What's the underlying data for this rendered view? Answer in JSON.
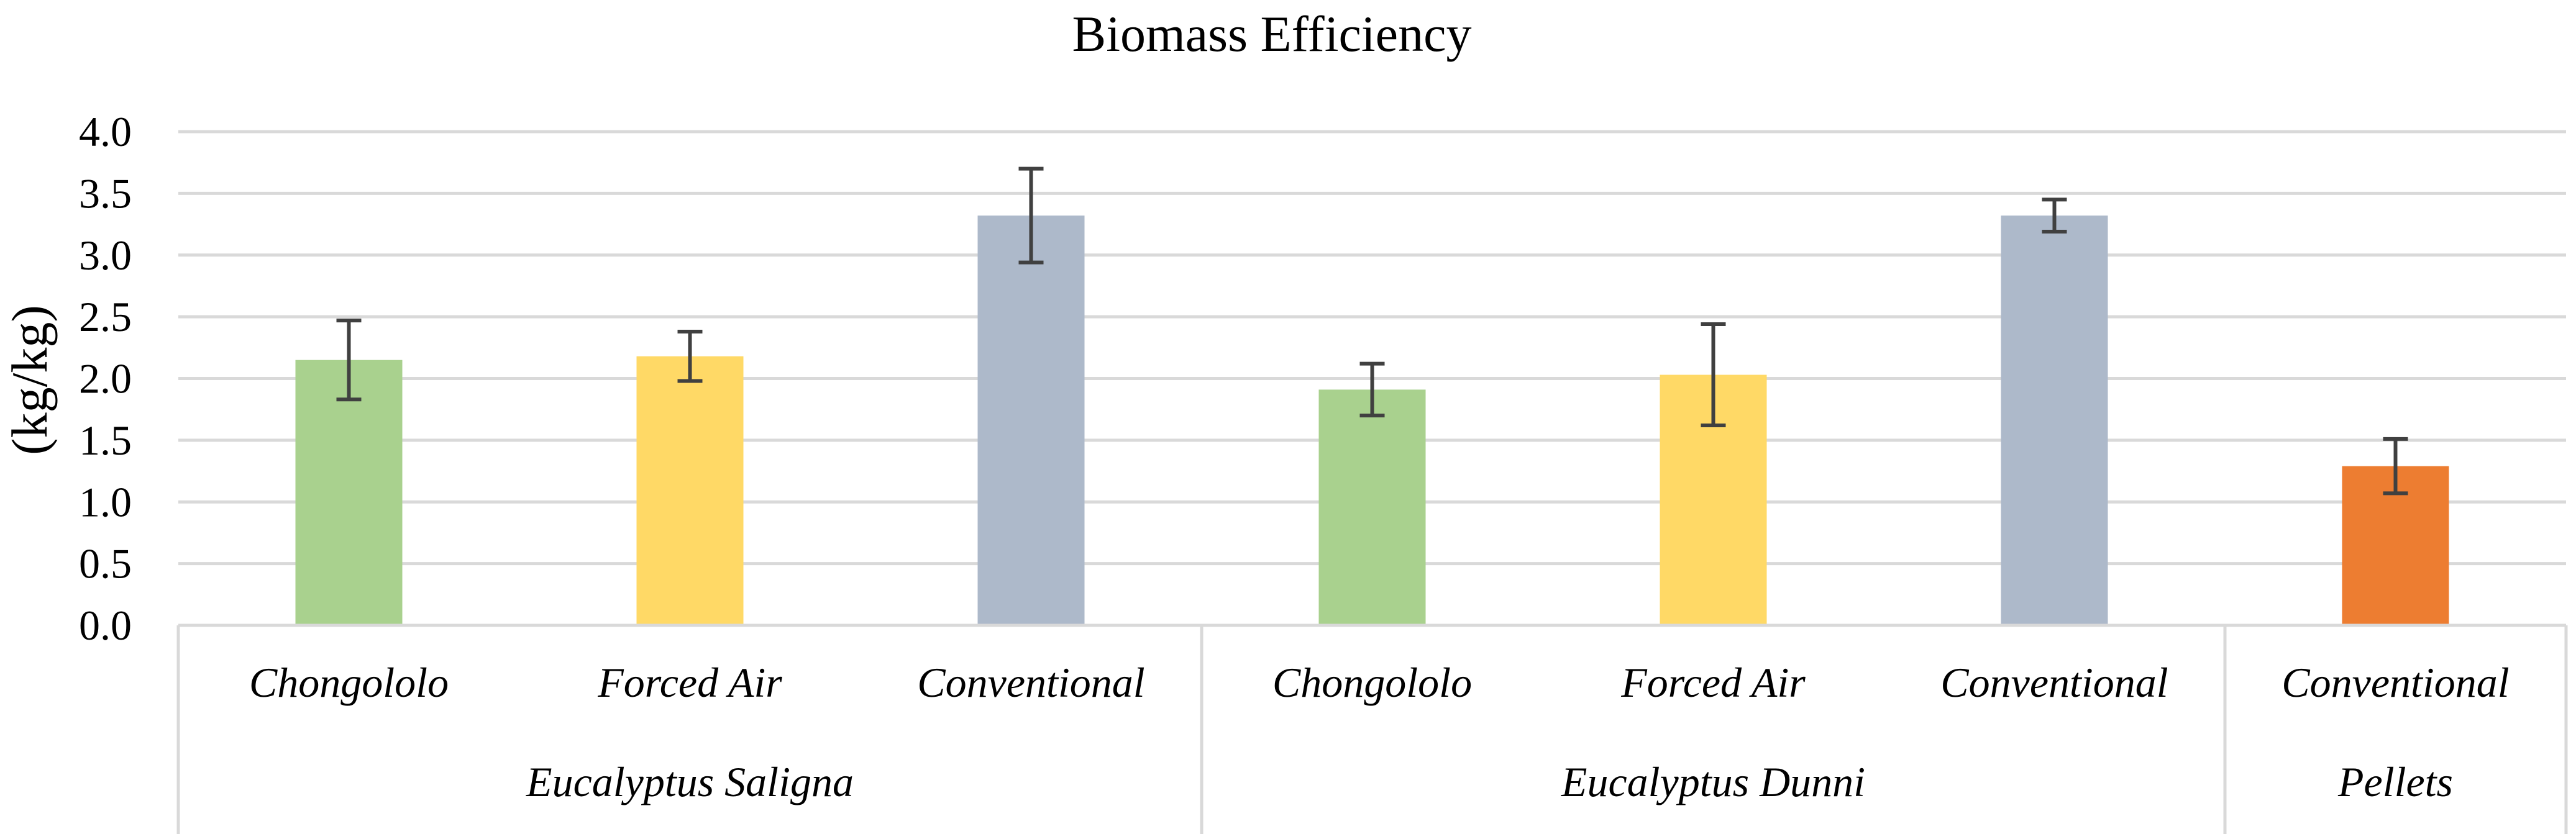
{
  "chart_data": {
    "type": "bar",
    "title": "Biomass Efficiency",
    "xlabel": "",
    "ylabel": "(kg/kg)",
    "ylim": [
      0,
      4.0
    ],
    "yticks": [
      "0.0",
      "0.5",
      "1.0",
      "1.5",
      "2.0",
      "2.5",
      "3.0",
      "3.5",
      "4.0"
    ],
    "grid": true,
    "legend": "none",
    "groups": [
      {
        "label": "Eucalyptus Saligna",
        "categories": [
          "Chongololo",
          "Forced Air",
          "Conventional"
        ]
      },
      {
        "label": "Eucalyptus Dunni",
        "categories": [
          "Chongololo",
          "Forced Air",
          "Conventional"
        ]
      },
      {
        "label": "Pellets",
        "categories": [
          "Conventional"
        ]
      }
    ],
    "categories": [
      "Chongololo",
      "Forced Air",
      "Conventional",
      "Chongololo",
      "Forced Air",
      "Conventional",
      "Conventional"
    ],
    "values": [
      2.15,
      2.18,
      3.32,
      1.91,
      2.03,
      3.32,
      1.29
    ],
    "errors": [
      0.32,
      0.2,
      0.38,
      0.21,
      0.41,
      0.13,
      0.22
    ],
    "colors": [
      "#a9d18e",
      "#ffd966",
      "#adb9ca",
      "#a9d18e",
      "#ffd966",
      "#adb9ca",
      "#ed7d31"
    ],
    "error_color": "#404040",
    "grid_color": "#d9d9d9"
  }
}
